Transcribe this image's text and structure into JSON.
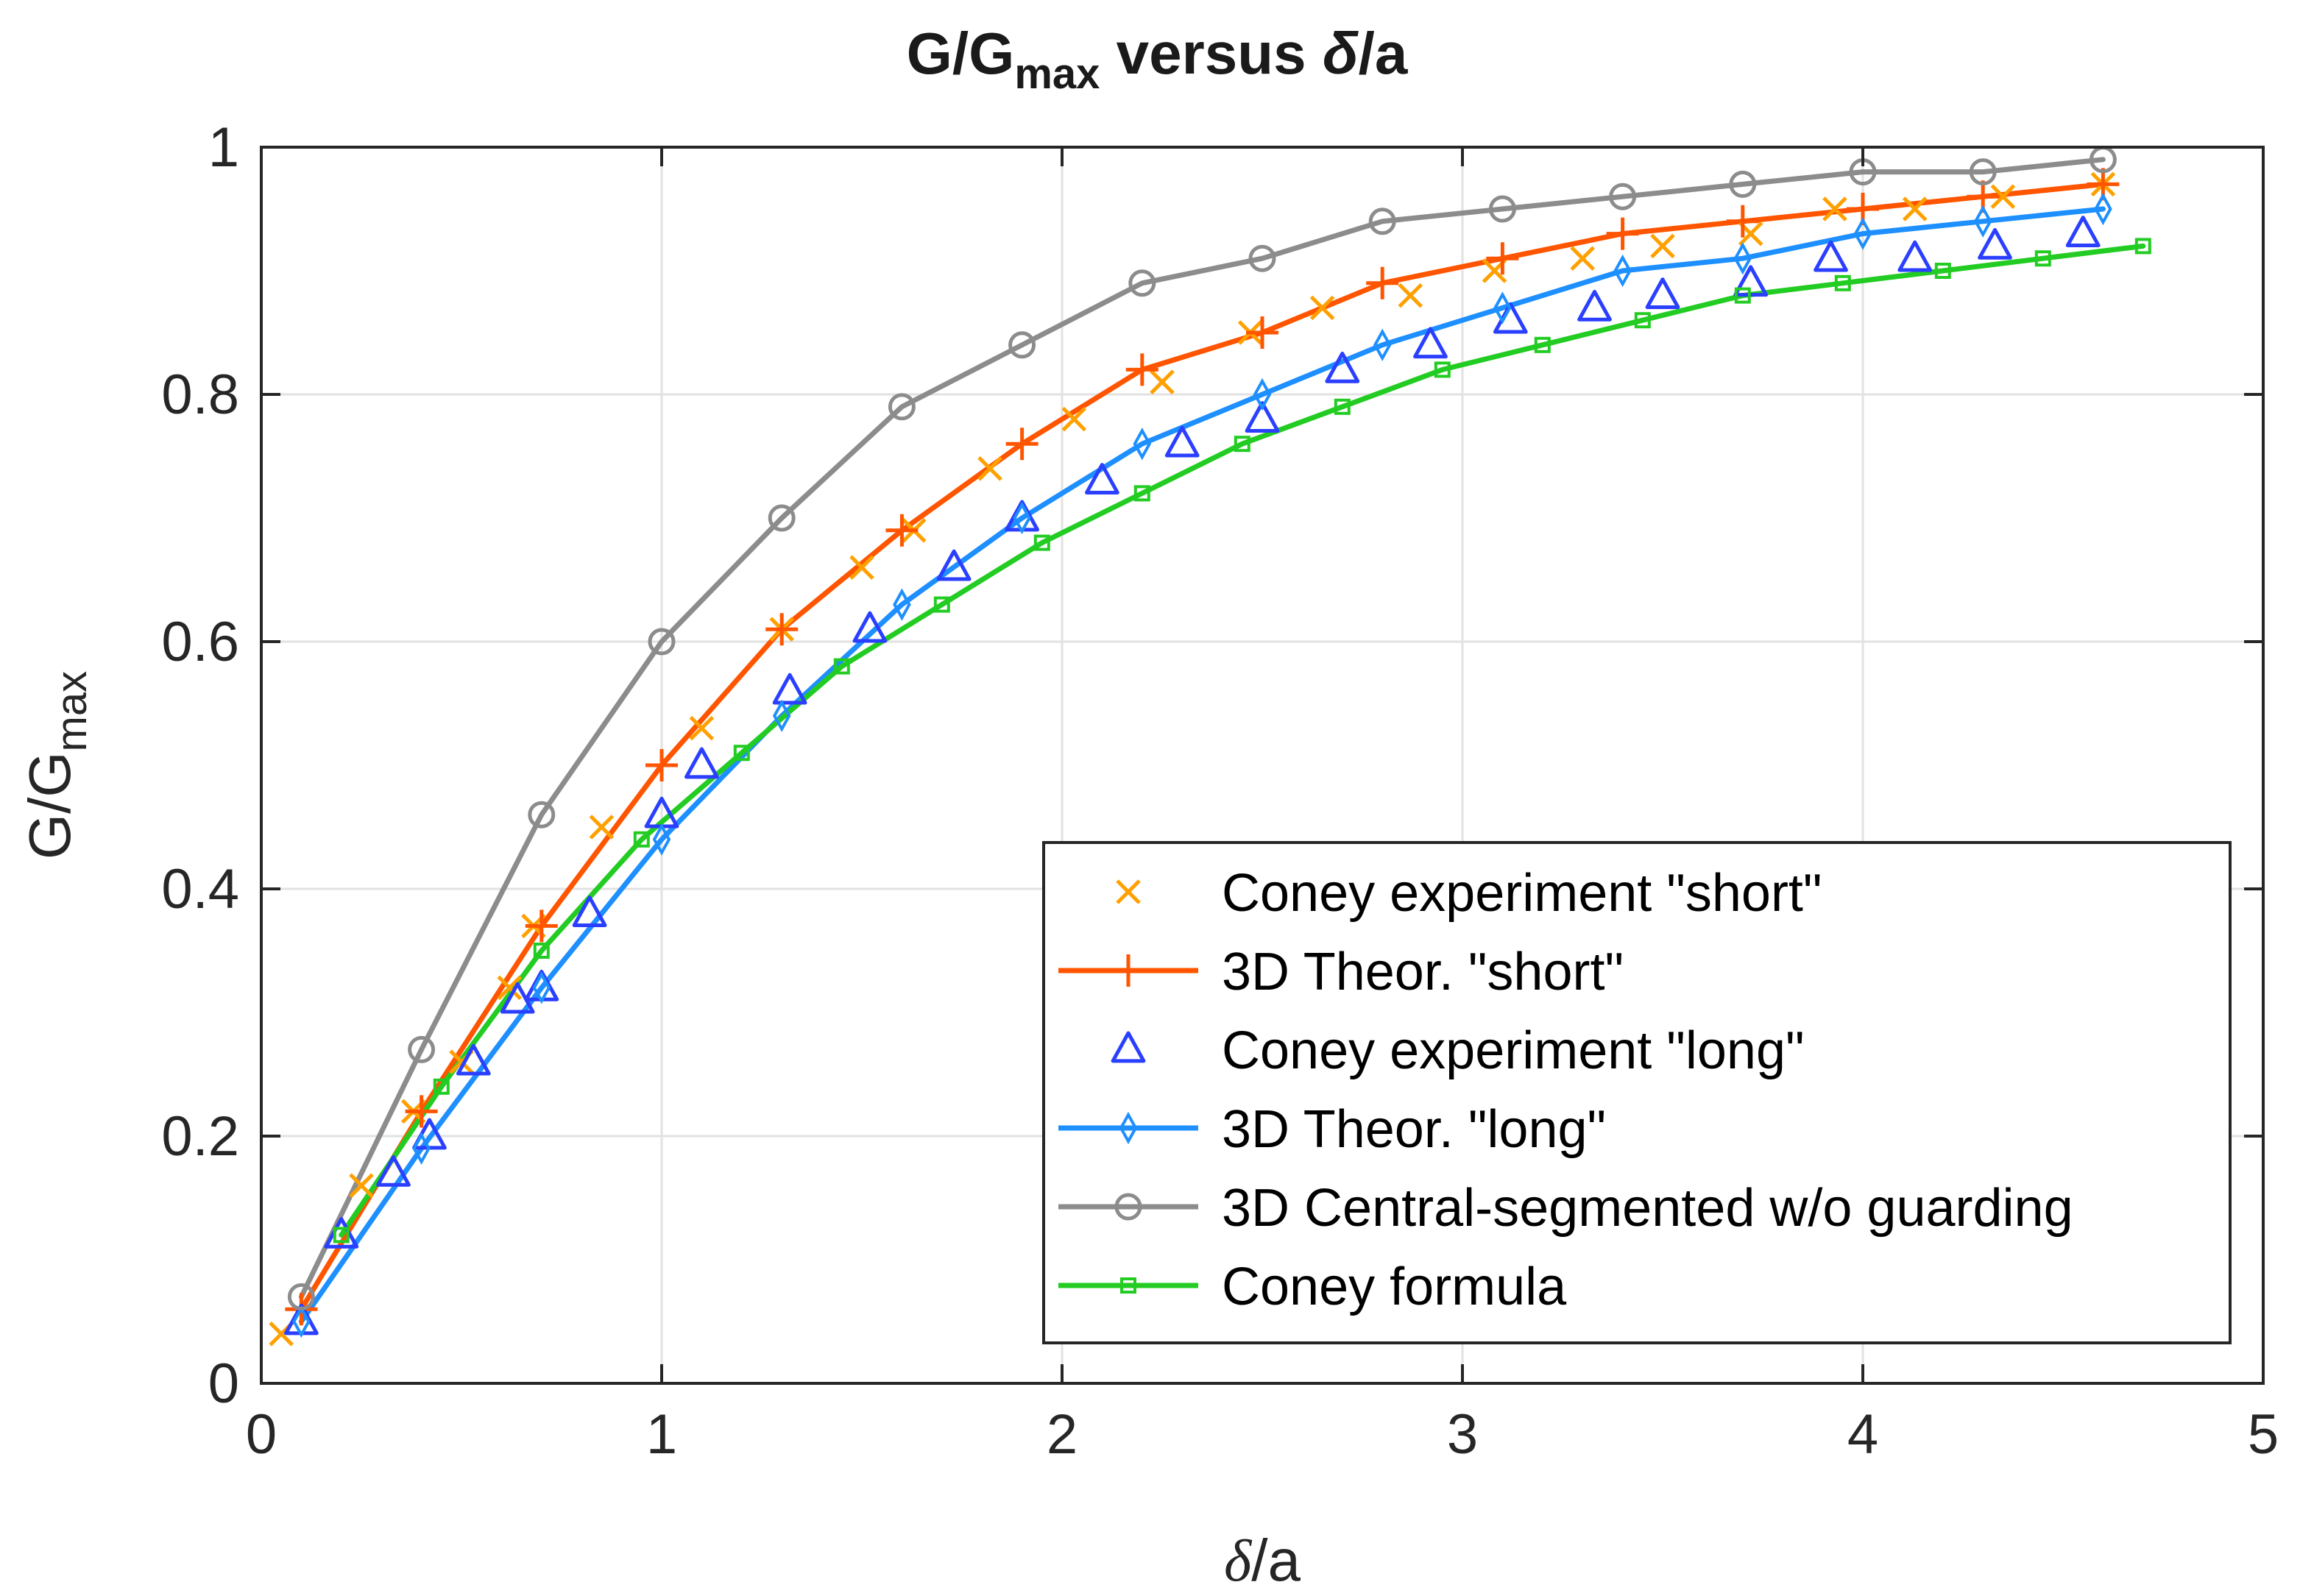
{
  "chart_data": {
    "type": "line",
    "title": {
      "prefix": "G/G",
      "sub": "max",
      "suffix": " versus ",
      "delta": "δ",
      "tail": "/a"
    },
    "xlabel": {
      "delta": "δ",
      "tail": "/a"
    },
    "ylabel": {
      "main": "G/G",
      "sub": "max"
    },
    "xlim": [
      0,
      5
    ],
    "ylim": [
      0,
      1
    ],
    "xticks": [
      0,
      1,
      2,
      3,
      4,
      5
    ],
    "yticks": [
      0,
      0.2,
      0.4,
      0.6,
      0.8,
      1
    ],
    "xtick_labels": [
      "0",
      "1",
      "2",
      "3",
      "4",
      "5"
    ],
    "ytick_labels": [
      "0",
      "0.2",
      "0.4",
      "0.6",
      "0.8",
      "1"
    ],
    "grid": true,
    "legend_position": "bottom-right",
    "series": [
      {
        "name": "Coney experiment \"short\"",
        "color": "#FFA000",
        "marker": "x",
        "line": false,
        "x": [
          0.05,
          0.25,
          0.38,
          0.5,
          0.62,
          0.68,
          0.85,
          1.1,
          1.3,
          1.5,
          1.63,
          1.82,
          2.03,
          2.25,
          2.47,
          2.65,
          2.87,
          3.08,
          3.3,
          3.5,
          3.72,
          3.93,
          4.13,
          4.35,
          4.6
        ],
        "y": [
          0.04,
          0.16,
          0.22,
          0.26,
          0.32,
          0.37,
          0.45,
          0.53,
          0.61,
          0.66,
          0.69,
          0.74,
          0.78,
          0.81,
          0.85,
          0.87,
          0.88,
          0.9,
          0.91,
          0.92,
          0.93,
          0.95,
          0.95,
          0.96,
          0.97
        ]
      },
      {
        "name": "3D Theor. \"short\"",
        "color": "#FF5500",
        "marker": "+",
        "line": true,
        "x": [
          0.1,
          0.4,
          0.7,
          1.0,
          1.3,
          1.6,
          1.9,
          2.2,
          2.5,
          2.8,
          3.1,
          3.4,
          3.7,
          4.0,
          4.3,
          4.6
        ],
        "y": [
          0.06,
          0.22,
          0.37,
          0.5,
          0.61,
          0.69,
          0.76,
          0.82,
          0.85,
          0.89,
          0.91,
          0.93,
          0.94,
          0.95,
          0.96,
          0.97
        ]
      },
      {
        "name": "Coney experiment \"long\"",
        "color": "#2A3FFF",
        "marker": "triangle",
        "line": false,
        "x": [
          0.1,
          0.2,
          0.33,
          0.42,
          0.53,
          0.64,
          0.7,
          0.82,
          1.0,
          1.1,
          1.32,
          1.52,
          1.73,
          1.9,
          2.1,
          2.3,
          2.5,
          2.7,
          2.92,
          3.12,
          3.33,
          3.5,
          3.72,
          3.92,
          4.13,
          4.33,
          4.55
        ],
        "y": [
          0.05,
          0.12,
          0.17,
          0.2,
          0.26,
          0.31,
          0.32,
          0.38,
          0.46,
          0.5,
          0.56,
          0.61,
          0.66,
          0.7,
          0.73,
          0.76,
          0.78,
          0.82,
          0.84,
          0.86,
          0.87,
          0.88,
          0.89,
          0.91,
          0.91,
          0.92,
          0.93
        ]
      },
      {
        "name": "3D Theor. \"long\"",
        "color": "#1E8FFF",
        "marker": "diamond",
        "line": true,
        "x": [
          0.1,
          0.4,
          0.7,
          1.0,
          1.3,
          1.6,
          1.9,
          2.2,
          2.5,
          2.8,
          3.1,
          3.4,
          3.7,
          4.0,
          4.3,
          4.6
        ],
        "y": [
          0.05,
          0.19,
          0.32,
          0.44,
          0.54,
          0.63,
          0.7,
          0.76,
          0.8,
          0.84,
          0.87,
          0.9,
          0.91,
          0.93,
          0.94,
          0.95
        ]
      },
      {
        "name": "3D Central-segmented w/o guarding",
        "color": "#8C8C8C",
        "marker": "circle",
        "line": true,
        "x": [
          0.1,
          0.4,
          0.7,
          1.0,
          1.3,
          1.6,
          1.9,
          2.2,
          2.5,
          2.8,
          3.1,
          3.4,
          3.7,
          4.0,
          4.3,
          4.6
        ],
        "y": [
          0.07,
          0.27,
          0.46,
          0.6,
          0.7,
          0.79,
          0.84,
          0.89,
          0.91,
          0.94,
          0.95,
          0.96,
          0.97,
          0.98,
          0.98,
          0.99
        ]
      },
      {
        "name": "Coney formula",
        "color": "#22CC22",
        "marker": "square",
        "line": true,
        "x": [
          0.2,
          0.45,
          0.7,
          0.95,
          1.2,
          1.45,
          1.7,
          1.95,
          2.2,
          2.45,
          2.7,
          2.95,
          3.2,
          3.45,
          3.7,
          3.95,
          4.2,
          4.45,
          4.7
        ],
        "y": [
          0.12,
          0.24,
          0.35,
          0.44,
          0.51,
          0.58,
          0.63,
          0.68,
          0.72,
          0.76,
          0.79,
          0.82,
          0.84,
          0.86,
          0.88,
          0.89,
          0.9,
          0.91,
          0.92
        ]
      }
    ]
  }
}
